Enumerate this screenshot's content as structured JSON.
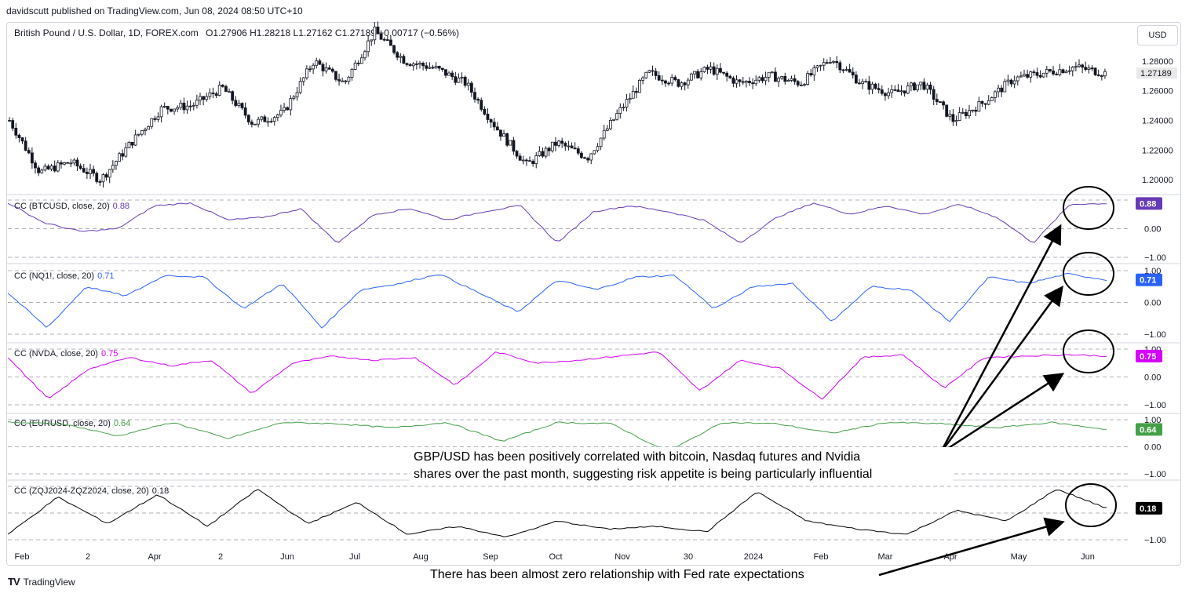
{
  "header": {
    "published": "davidscutt published on TradingView.com, Jun 08, 2024 08:50 UTC+10"
  },
  "symbol": {
    "name": "British Pound / U.S. Dollar, 1D, FOREX.com",
    "ohlc": "O1.27906  H1.28218  L1.27162  C1.27189  −0.00717 (−0.56%)"
  },
  "currency_button": "USD",
  "brand": {
    "name": "TradingView"
  },
  "x_axis_labels": [
    "Feb",
    "2",
    "Apr",
    "2",
    "Jun",
    "Jul",
    "Aug",
    "Sep",
    "Oct",
    "Nov",
    "30",
    "2024",
    "Feb",
    "Mar",
    "Apr",
    "May",
    "Jun"
  ],
  "colors": {
    "price_up": "#131722",
    "price_down": "#131722",
    "btc": "#673ab7",
    "nq": "#2962ff",
    "nvda": "#d500f9",
    "eur": "#43a047",
    "fed": "#000000",
    "annotation": "#000000"
  },
  "price_panel": {
    "y_ticks": [
      "1.20000",
      "1.22000",
      "1.24000",
      "1.26000",
      "1.28000"
    ],
    "last_price": "1.27189"
  },
  "panels": [
    {
      "key": "btc",
      "label": "CC (BTCUSD, close, 20)",
      "value": "0.88",
      "ticks": [
        "0.00",
        "−1.00"
      ]
    },
    {
      "key": "nq",
      "label": "CC (NQ1!, close, 20)",
      "value": "0.71",
      "ticks": [
        "1.00",
        "0.00",
        "−1.00"
      ]
    },
    {
      "key": "nvda",
      "label": "CC (NVDA, close, 20)",
      "value": "0.75",
      "ticks": [
        "1.00",
        "0.00",
        "−1.00"
      ]
    },
    {
      "key": "eur",
      "label": "CC (EURUSD, close, 20)",
      "value": "0.64",
      "ticks": [
        "1.00",
        "0.00",
        "−1.00"
      ]
    },
    {
      "key": "fed",
      "label": "CC (ZQJ2024-ZQZ2024, close, 20)",
      "value": "0.18",
      "ticks": [
        "−1.00"
      ]
    }
  ],
  "annotations": {
    "risk": [
      "GBP/USD has been positively correlated with bitcoin, Nasdaq futures and Nvidia",
      "shares over the past month, suggesting risk appetite is being particularly influential"
    ],
    "fed": "There has been almost zero relationship with Fed rate expectations"
  },
  "chart_data": [
    {
      "type": "candlestick",
      "title": "British Pound / U.S. Dollar, 1D, FOREX.com",
      "ylabel": "USD",
      "ylim": [
        1.19,
        1.3
      ],
      "x": [
        "Feb",
        "2",
        "Apr",
        "2",
        "Jun",
        "Jul",
        "Aug",
        "Sep",
        "Oct",
        "Nov",
        "30",
        "2024",
        "Feb",
        "Mar",
        "Apr",
        "May",
        "Jun"
      ],
      "approx_close_path": [
        1.24,
        1.205,
        1.212,
        1.2,
        1.225,
        1.248,
        1.25,
        1.262,
        1.238,
        1.245,
        1.28,
        1.265,
        1.3,
        1.28,
        1.275,
        1.265,
        1.235,
        1.21,
        1.225,
        1.215,
        1.245,
        1.272,
        1.265,
        1.275,
        1.265,
        1.27,
        1.265,
        1.282,
        1.265,
        1.258,
        1.265,
        1.24,
        1.252,
        1.268,
        1.272,
        1.276,
        1.2719
      ],
      "last_close": 1.27189
    },
    {
      "type": "line",
      "name": "CC (BTCUSD, close, 20)",
      "ylim": [
        -1,
        1
      ],
      "values": [
        0.9,
        0.2,
        -0.1,
        0.0,
        0.8,
        0.9,
        0.3,
        0.4,
        0.7,
        -0.5,
        0.5,
        0.7,
        0.3,
        0.6,
        0.8,
        -0.5,
        0.6,
        0.8,
        0.6,
        0.3,
        -0.5,
        0.4,
        0.9,
        0.5,
        0.8,
        0.5,
        0.85,
        0.4,
        -0.5,
        0.85,
        0.88
      ]
    },
    {
      "type": "line",
      "name": "CC (NQ1!, close, 20)",
      "ylim": [
        -1,
        1
      ],
      "values": [
        0.3,
        -0.8,
        0.5,
        0.2,
        0.85,
        0.8,
        -0.2,
        0.6,
        -0.8,
        0.4,
        0.6,
        0.9,
        0.3,
        -0.3,
        0.7,
        0.4,
        0.8,
        0.85,
        -0.2,
        0.5,
        0.6,
        -0.6,
        0.5,
        0.4,
        -0.6,
        0.8,
        0.6,
        0.9,
        0.71
      ]
    },
    {
      "type": "line",
      "name": "CC (NVDA, close, 20)",
      "ylim": [
        -1,
        1
      ],
      "values": [
        0.7,
        -0.8,
        0.3,
        0.7,
        0.4,
        0.6,
        -0.6,
        0.5,
        0.75,
        0.6,
        0.7,
        -0.3,
        0.9,
        0.5,
        0.6,
        0.75,
        0.9,
        -0.5,
        0.6,
        0.3,
        -0.8,
        0.7,
        0.8,
        -0.4,
        0.7,
        0.75,
        0.8,
        0.75
      ]
    },
    {
      "type": "line",
      "name": "CC (EURUSD, close, 20)",
      "ylim": [
        -1,
        1
      ],
      "values": [
        0.9,
        0.85,
        0.4,
        0.9,
        0.3,
        0.9,
        0.85,
        0.7,
        0.9,
        0.2,
        0.9,
        0.85,
        -0.2,
        0.9,
        0.85,
        0.5,
        0.9,
        0.85,
        0.7,
        0.9,
        0.64
      ]
    },
    {
      "type": "line",
      "name": "CC (ZQJ2024-ZQZ2024, close, 20)",
      "ylim": [
        -1,
        1
      ],
      "values": [
        -0.8,
        0.6,
        -0.4,
        0.7,
        -0.5,
        0.9,
        -0.4,
        0.4,
        -0.8,
        -0.5,
        -0.9,
        -0.3,
        -0.6,
        -0.5,
        -0.7,
        0.8,
        -0.3,
        -0.6,
        -0.8,
        0.1,
        -0.3,
        0.9,
        0.18
      ]
    }
  ]
}
